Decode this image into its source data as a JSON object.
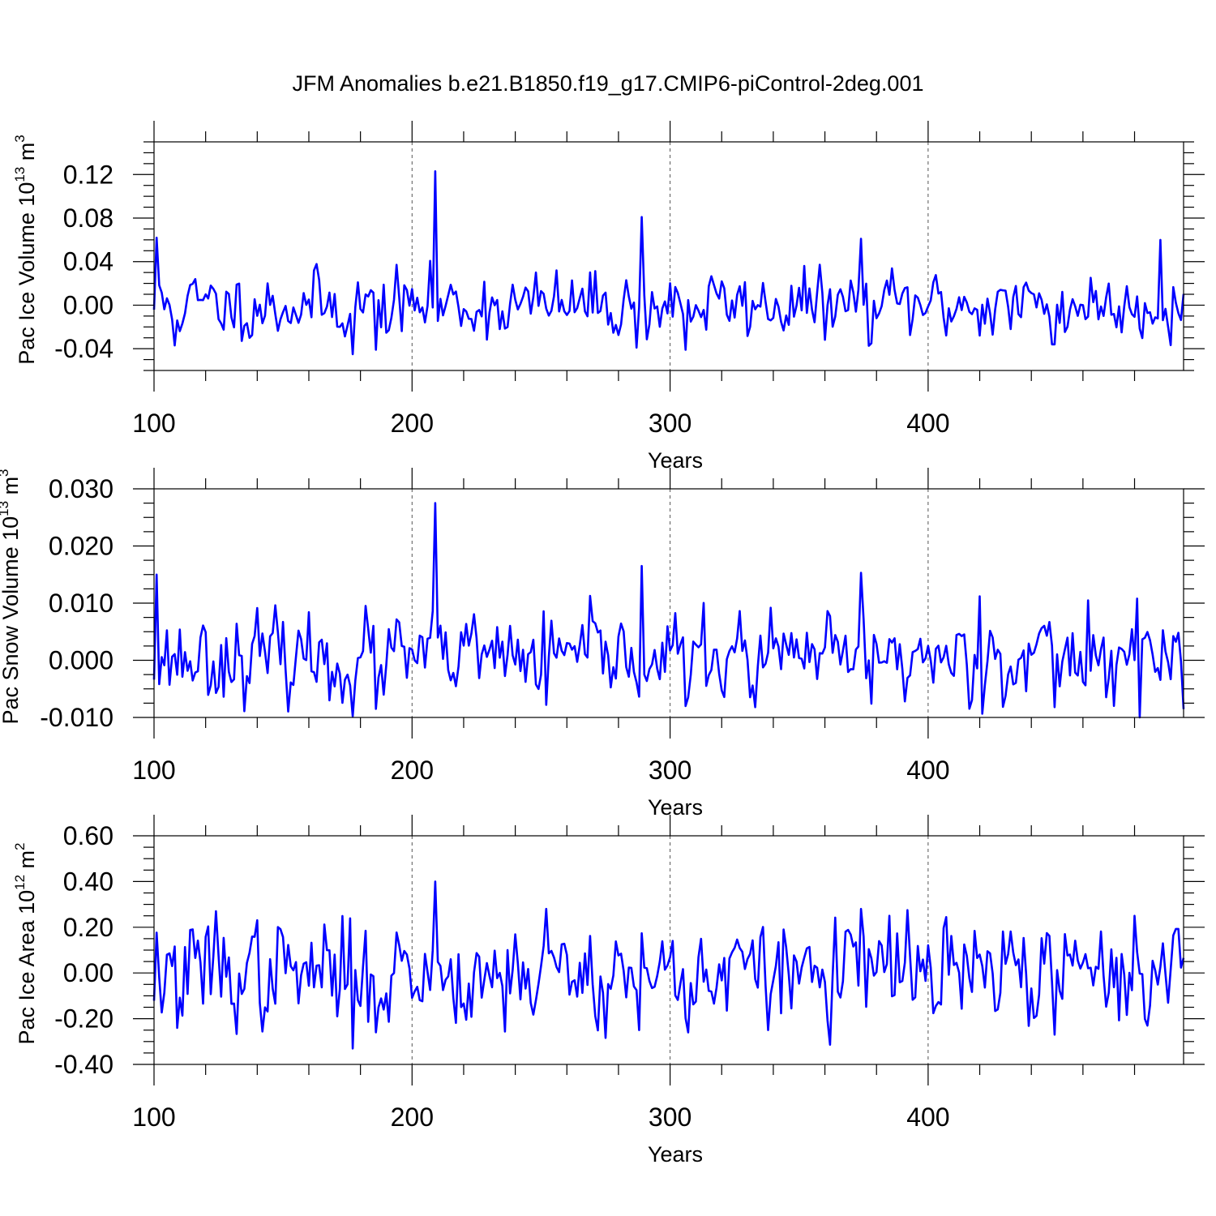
{
  "title": "JFM Anomalies b.e21.B1850.f19_g17.CMIP6-piControl-2deg.001",
  "colors": {
    "series": "#0000ff",
    "axis": "#000000",
    "refline": "#555555"
  },
  "chart_data": [
    {
      "type": "line",
      "ylabel": "Pac Ice Volume 10",
      "ylabel_exp": "13",
      "ylabel_unit": " m",
      "ylabel_unit_exp": "3",
      "xlabel": "Years",
      "xlim": [
        100,
        499
      ],
      "ylim": [
        -0.06,
        0.15
      ],
      "xticks": [
        100,
        200,
        300,
        400
      ],
      "xtick_labels": [
        "100",
        "200",
        "300",
        "400"
      ],
      "yticks": [
        -0.04,
        0.0,
        0.04,
        0.08,
        0.12
      ],
      "ytick_labels": [
        "-0.04",
        "0.00",
        "0.04",
        "0.08",
        "0.12"
      ],
      "vlines": [
        200,
        300,
        400
      ],
      "spikes": [
        [
          101,
          0.062
        ],
        [
          209,
          0.123
        ],
        [
          289,
          0.081
        ],
        [
          374,
          0.061
        ],
        [
          490,
          0.06
        ],
        [
          108,
          -0.037
        ],
        [
          177,
          -0.045
        ],
        [
          186,
          -0.041
        ],
        [
          287,
          -0.039
        ],
        [
          306,
          -0.041
        ],
        [
          378,
          -0.035
        ],
        [
          448,
          -0.036
        ],
        [
          449,
          -0.036
        ]
      ],
      "amplitude": 0.015,
      "offset": 0.0,
      "seed": 11
    },
    {
      "type": "line",
      "ylabel": "Pac Snow Volume 10",
      "ylabel_exp": "13",
      "ylabel_unit": " m",
      "ylabel_unit_exp": "3",
      "xlabel": "Years",
      "xlim": [
        100,
        499
      ],
      "ylim": [
        -0.01,
        0.03
      ],
      "xticks": [
        100,
        200,
        300,
        400
      ],
      "xtick_labels": [
        "100",
        "200",
        "300",
        "400"
      ],
      "yticks": [
        -0.01,
        0.0,
        0.01,
        0.02,
        0.03
      ],
      "ytick_labels": [
        "-0.010",
        "0.000",
        "0.010",
        "0.020",
        "0.030"
      ],
      "vlines": [
        200,
        300,
        400
      ],
      "spikes": [
        [
          101,
          0.015
        ],
        [
          209,
          0.0275
        ],
        [
          289,
          0.0165
        ],
        [
          374,
          0.0153
        ],
        [
          420,
          0.0112
        ],
        [
          462,
          0.0105
        ],
        [
          481,
          0.0108
        ],
        [
          168,
          -0.007
        ],
        [
          177,
          -0.0098
        ],
        [
          186,
          -0.0085
        ],
        [
          252,
          -0.0078
        ],
        [
          306,
          -0.008
        ],
        [
          333,
          -0.0082
        ],
        [
          378,
          -0.0076
        ],
        [
          449,
          -0.0082
        ]
      ],
      "amplitude": 0.0035,
      "offset": 0.0005,
      "seed": 23
    },
    {
      "type": "line",
      "ylabel": "Pac Ice Area 10",
      "ylabel_exp": "12",
      "ylabel_unit": " m",
      "ylabel_unit_exp": "2",
      "xlabel": "Years",
      "xlim": [
        100,
        499
      ],
      "ylim": [
        -0.4,
        0.6
      ],
      "xticks": [
        100,
        200,
        300,
        400
      ],
      "xtick_labels": [
        "100",
        "200",
        "300",
        "400"
      ],
      "yticks": [
        -0.4,
        -0.2,
        0.0,
        0.2,
        0.4,
        0.6
      ],
      "ytick_labels": [
        "-0.40",
        "-0.20",
        "0.00",
        "0.20",
        "0.40",
        "0.60"
      ],
      "vlines": [
        200,
        300,
        400
      ],
      "spikes": [
        [
          109,
          -0.24
        ],
        [
          124,
          0.27
        ],
        [
          177,
          -0.33
        ],
        [
          186,
          -0.26
        ],
        [
          209,
          0.4
        ],
        [
          252,
          0.28
        ],
        [
          288,
          -0.25
        ],
        [
          307,
          -0.26
        ],
        [
          374,
          0.28
        ],
        [
          385,
          0.25
        ],
        [
          449,
          -0.27
        ],
        [
          485,
          -0.23
        ],
        [
          480,
          0.25
        ]
      ],
      "amplitude": 0.11,
      "offset": 0.0,
      "seed": 37
    }
  ]
}
